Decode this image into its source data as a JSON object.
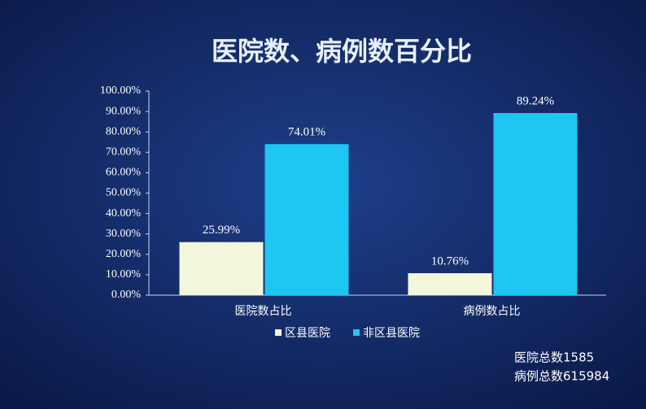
{
  "chart_data": {
    "type": "bar",
    "title": "医院数、病例数百分比",
    "categories": [
      "医院数占比",
      "病例数占比"
    ],
    "series": [
      {
        "name": "区县医院",
        "color": "#f3f8dc",
        "values": [
          25.99,
          10.76
        ],
        "value_labels": [
          "25.99%",
          "10.76%"
        ]
      },
      {
        "name": "非区县医院",
        "color": "#1ec6f2",
        "values": [
          74.01,
          89.24
        ],
        "value_labels": [
          "74.01%",
          "89.24%"
        ]
      }
    ],
    "ylim": [
      0,
      100
    ],
    "yticks": [
      {
        "value": 0,
        "label": "0.00%"
      },
      {
        "value": 10,
        "label": "10.00%"
      },
      {
        "value": 20,
        "label": "20.00%"
      },
      {
        "value": 30,
        "label": "30.00%"
      },
      {
        "value": 40,
        "label": "40.00%"
      },
      {
        "value": 50,
        "label": "50.00%"
      },
      {
        "value": 60,
        "label": "60.00%"
      },
      {
        "value": 70,
        "label": "70.00%"
      },
      {
        "value": 80,
        "label": "80.00%"
      },
      {
        "value": 90,
        "label": "90.00%"
      },
      {
        "value": 100,
        "label": "100.00%"
      }
    ],
    "grid": false,
    "legend": "bottom",
    "annotations": [
      "医院总数1585",
      "病例总数615984"
    ]
  }
}
